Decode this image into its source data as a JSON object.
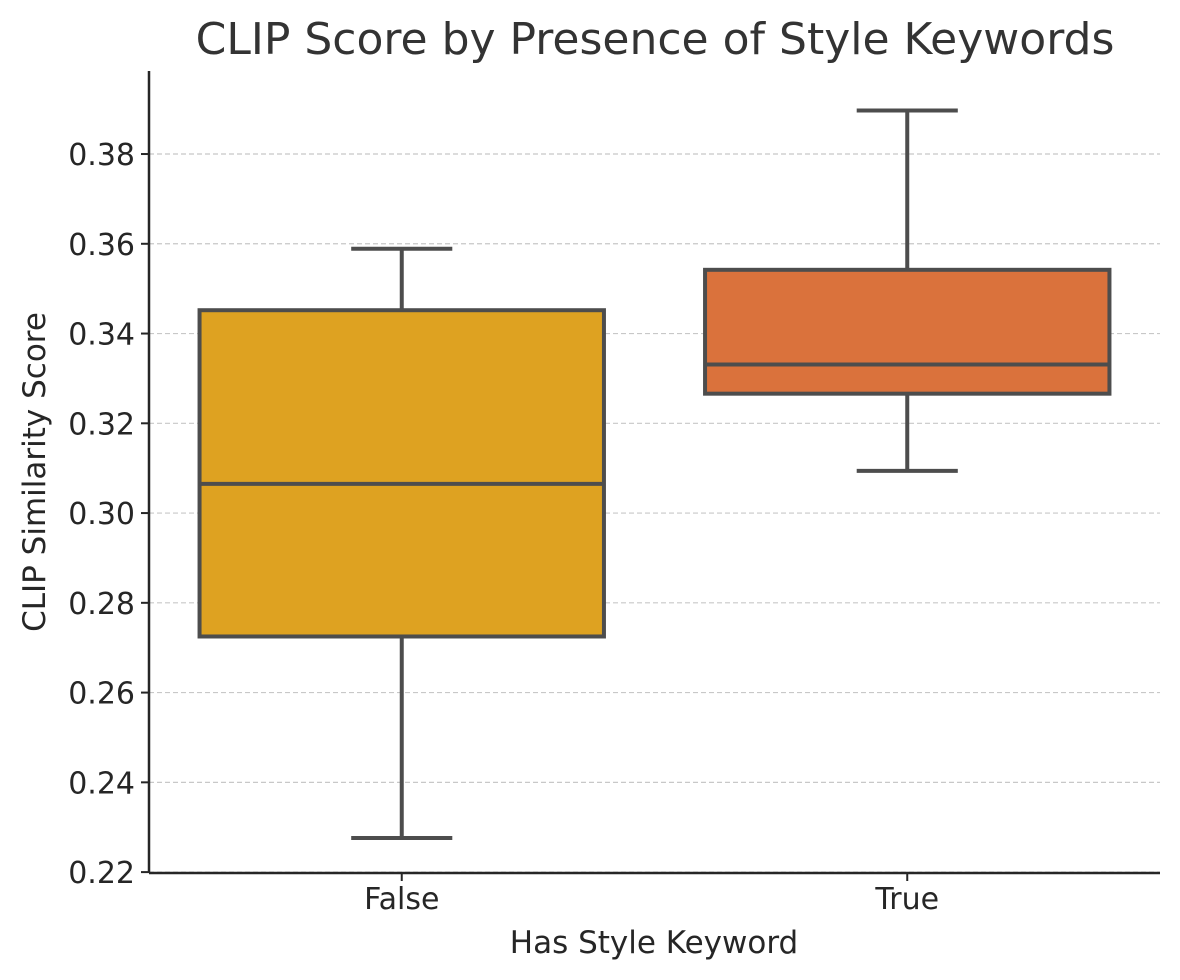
{
  "chart_data": {
    "type": "box",
    "title": "CLIP Score by Presence of Style Keywords",
    "xlabel": "Has Style Keyword",
    "ylabel": "CLIP Similarity Score",
    "ylim": [
      0.2198,
      0.3985
    ],
    "yticks": [
      0.22,
      0.24,
      0.26,
      0.28,
      0.3,
      0.32,
      0.34,
      0.36,
      0.38
    ],
    "ytick_labels": [
      "0.22",
      "0.24",
      "0.26",
      "0.28",
      "0.30",
      "0.32",
      "0.34",
      "0.36",
      "0.38"
    ],
    "grid": "y-dashed",
    "categories": [
      "False",
      "True"
    ],
    "boxes": [
      {
        "category": "False",
        "whisker_low": 0.2276,
        "q1": 0.2725,
        "median": 0.3065,
        "q3": 0.3452,
        "whisker_high": 0.3589,
        "color": "#DEA221"
      },
      {
        "category": "True",
        "whisker_low": 0.3094,
        "q1": 0.3266,
        "median": 0.3331,
        "q3": 0.3542,
        "whisker_high": 0.3897,
        "color": "#DA723C"
      }
    ],
    "colors": {
      "line": "#4d4d4d",
      "grid": "#c8c8c8",
      "axis": "#262626",
      "text": "#262626"
    }
  }
}
